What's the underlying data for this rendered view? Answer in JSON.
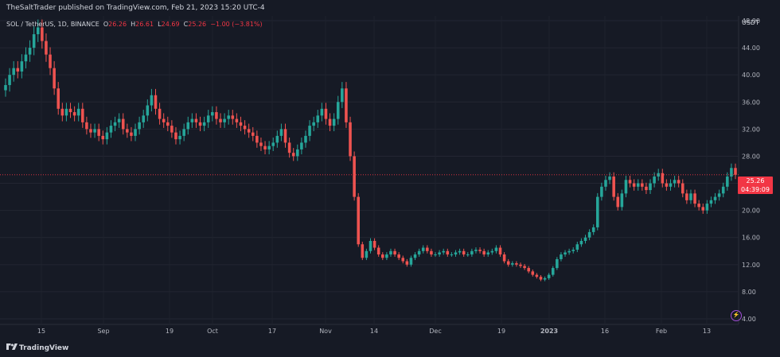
{
  "publish_bar": {
    "text": "TheSaltTrader published on TradingView.com, Feb 21, 2023 15:20 UTC-4"
  },
  "legend": {
    "symbol": "SOL / TetherUS, 1D, BINANCE",
    "o_label": "O",
    "o": "26.26",
    "h_label": "H",
    "h": "26.61",
    "l_label": "L",
    "l": "24.69",
    "c_label": "C",
    "c": "25.26",
    "change": "−1.00 (−3.81%)"
  },
  "price_axis": {
    "unit": "USDT",
    "ticks": [
      "48.00",
      "44.00",
      "40.00",
      "36.00",
      "32.00",
      "28.00",
      "24.00",
      "20.00",
      "16.00",
      "12.00",
      "8.00",
      "4.00"
    ]
  },
  "time_axis": {
    "ticks": [
      "15",
      "Sep",
      "19",
      "Oct",
      "17",
      "Nov",
      "14",
      "Dec",
      "19",
      "2023",
      "16",
      "Feb",
      "13"
    ]
  },
  "last_price": {
    "price": "25.26",
    "countdown": "04:39:09"
  },
  "footer": {
    "brand": "TradingView"
  },
  "colors": {
    "up": "#26a69a",
    "down": "#ef5350",
    "bg": "#161a25",
    "grid": "#232632",
    "last_price": "#f23645"
  },
  "chart_data": {
    "type": "candlestick",
    "symbol": "SOL / TetherUS",
    "interval": "1D",
    "exchange": "BINANCE",
    "ylim": [
      4,
      50
    ],
    "series_close": [
      38.5,
      40,
      41,
      40.5,
      42,
      43,
      44,
      46,
      47,
      45,
      43,
      41,
      38,
      35,
      34,
      35,
      34.5,
      34,
      35,
      33,
      32,
      31.5,
      32,
      31,
      30.5,
      31.5,
      32.5,
      33,
      33.5,
      32,
      31.5,
      31,
      32,
      33,
      34,
      35.5,
      37,
      35,
      33.5,
      33,
      32.5,
      31.5,
      30.5,
      31,
      32,
      33,
      33.5,
      33,
      32.5,
      33,
      34,
      34.5,
      33.5,
      33,
      33.5,
      34,
      33.5,
      33,
      32.5,
      32,
      31.5,
      31,
      30,
      29.5,
      29,
      29.5,
      30,
      31,
      32,
      30,
      28.5,
      28,
      29,
      30,
      31,
      32.5,
      33,
      34,
      35,
      33.5,
      32.5,
      33.5,
      36,
      38,
      33,
      28,
      22,
      15,
      13,
      14,
      15.5,
      14.5,
      13.5,
      13,
      13.5,
      14,
      13.5,
      13,
      12.5,
      12,
      13,
      13.5,
      14,
      14.5,
      14,
      13.5,
      13.5,
      13.8,
      14,
      13.5,
      13.5,
      13.8,
      14,
      13.5,
      13.5,
      14,
      14.2,
      14,
      13.5,
      13.8,
      14,
      14.5,
      13.5,
      12.5,
      12,
      12.2,
      12,
      11.8,
      11.5,
      11,
      10.5,
      10.2,
      9.8,
      10,
      10.5,
      11.5,
      12.8,
      13.5,
      13.8,
      14,
      14.2,
      15,
      15.5,
      16,
      16.8,
      17.5,
      22,
      23.5,
      24.5,
      25,
      22,
      20.5,
      22.5,
      24.5,
      24,
      23.5,
      24,
      23.5,
      23,
      24,
      25,
      25.5,
      24,
      23.5,
      24,
      24.5,
      24,
      22.5,
      21.5,
      22.5,
      21,
      20.5,
      20,
      21,
      21.5,
      22,
      22.5,
      23.5,
      25,
      26.26,
      25.26
    ]
  }
}
